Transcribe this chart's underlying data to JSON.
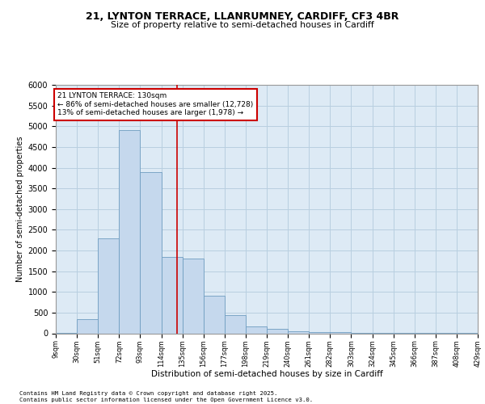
{
  "title1": "21, LYNTON TERRACE, LLANRUMNEY, CARDIFF, CF3 4BR",
  "title2": "Size of property relative to semi-detached houses in Cardiff",
  "xlabel": "Distribution of semi-detached houses by size in Cardiff",
  "ylabel": "Number of semi-detached properties",
  "bins": [
    "9sqm",
    "30sqm",
    "51sqm",
    "72sqm",
    "93sqm",
    "114sqm",
    "135sqm",
    "156sqm",
    "177sqm",
    "198sqm",
    "219sqm",
    "240sqm",
    "261sqm",
    "282sqm",
    "303sqm",
    "324sqm",
    "345sqm",
    "366sqm",
    "387sqm",
    "408sqm",
    "429sqm"
  ],
  "bin_edges": [
    9,
    30,
    51,
    72,
    93,
    114,
    135,
    156,
    177,
    198,
    219,
    240,
    261,
    282,
    303,
    324,
    345,
    366,
    387,
    408,
    429
  ],
  "values": [
    10,
    350,
    2300,
    4900,
    3900,
    1850,
    1800,
    900,
    430,
    170,
    110,
    55,
    35,
    20,
    12,
    7,
    4,
    2,
    2,
    1
  ],
  "bar_color": "#c5d8ed",
  "bar_edge_color": "#6e9dc0",
  "property_size": 130,
  "property_label": "21 LYNTON TERRACE: 130sqm",
  "pct_smaller": 86,
  "pct_larger": 13,
  "count_smaller": 12728,
  "count_larger": 1978,
  "vline_color": "#cc0000",
  "annotation_box_color": "#cc0000",
  "grid_color": "#b8cfe0",
  "bg_color": "#ddeaf5",
  "ylim": [
    0,
    6000
  ],
  "yticks": [
    0,
    500,
    1000,
    1500,
    2000,
    2500,
    3000,
    3500,
    4000,
    4500,
    5000,
    5500,
    6000
  ],
  "footnote1": "Contains HM Land Registry data © Crown copyright and database right 2025.",
  "footnote2": "Contains public sector information licensed under the Open Government Licence v3.0."
}
